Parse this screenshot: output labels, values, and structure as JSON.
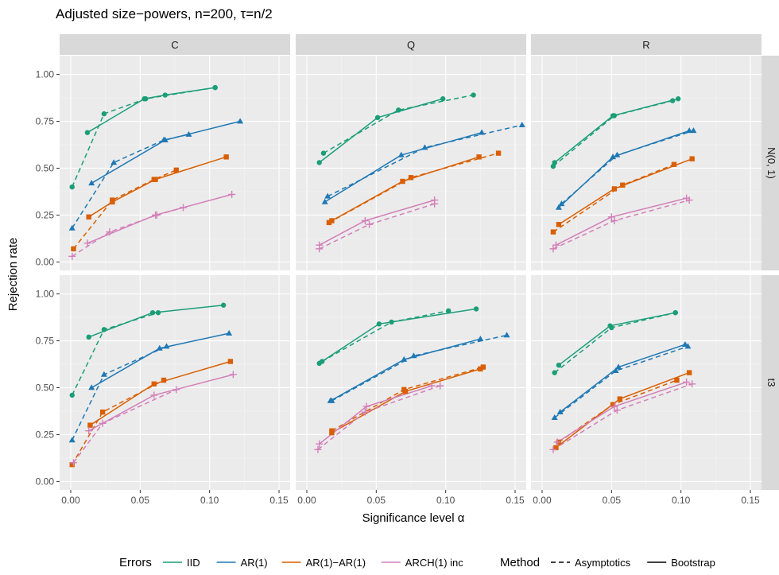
{
  "chart_data": {
    "type": "line",
    "title": "Adjusted size−powers, n=200, τ=n/2",
    "xlabel": "Significance level α",
    "ylabel": "Rejection rate",
    "xlim": [
      -0.008,
      0.158
    ],
    "ylim": [
      -0.045,
      1.1
    ],
    "x_ticks": [
      "0.00",
      "0.05",
      "0.10",
      "0.15"
    ],
    "y_ticks": [
      "0.00",
      "0.25",
      "0.50",
      "0.75",
      "1.00"
    ],
    "col_facets": [
      "C",
      "Q",
      "R"
    ],
    "row_facets": [
      "N(0, 1)",
      "t3"
    ],
    "grid": true,
    "legend_position": "bottom",
    "legend_errors": {
      "title": "Errors",
      "items": [
        {
          "key": "IID",
          "label": "IID",
          "color": "#1b9e77",
          "shape": "circle"
        },
        {
          "key": "AR1",
          "label": "AR(1)",
          "color": "#1f78b4",
          "shape": "triangle"
        },
        {
          "key": "AR1AR1",
          "label": "AR(1)−AR(1)",
          "color": "#d95f02",
          "shape": "square"
        },
        {
          "key": "ARCH",
          "label": "ARCH(1) inc",
          "color": "#d37fb8",
          "shape": "plus"
        }
      ]
    },
    "legend_method": {
      "title": "Method",
      "items": [
        {
          "key": "asym",
          "label": "Asymptotics",
          "dash": "dashed"
        },
        {
          "key": "boot",
          "label": "Bootstrap",
          "dash": "solid"
        }
      ]
    },
    "panels": [
      {
        "row": 0,
        "col": 0,
        "series": [
          {
            "errors": "IID",
            "method": "asym",
            "points": [
              [
                0.001,
                0.4
              ],
              [
                0.024,
                0.79
              ],
              [
                0.054,
                0.87
              ],
              [
                0.104,
                0.93
              ]
            ]
          },
          {
            "errors": "IID",
            "method": "boot",
            "points": [
              [
                0.012,
                0.69
              ],
              [
                0.053,
                0.87
              ],
              [
                0.068,
                0.89
              ],
              [
                0.104,
                0.93
              ]
            ]
          },
          {
            "errors": "AR1",
            "method": "asym",
            "points": [
              [
                0.001,
                0.18
              ],
              [
                0.031,
                0.53
              ],
              [
                0.067,
                0.65
              ],
              [
                0.085,
                0.68
              ]
            ]
          },
          {
            "errors": "AR1",
            "method": "boot",
            "points": [
              [
                0.015,
                0.42
              ],
              [
                0.068,
                0.65
              ],
              [
                0.122,
                0.75
              ]
            ]
          },
          {
            "errors": "AR1AR1",
            "method": "asym",
            "points": [
              [
                0.002,
                0.07
              ],
              [
                0.03,
                0.33
              ],
              [
                0.06,
                0.44
              ],
              [
                0.076,
                0.49
              ]
            ]
          },
          {
            "errors": "AR1AR1",
            "method": "boot",
            "points": [
              [
                0.013,
                0.24
              ],
              [
                0.03,
                0.32
              ],
              [
                0.061,
                0.44
              ],
              [
                0.112,
                0.56
              ]
            ]
          },
          {
            "errors": "ARCH",
            "method": "asym",
            "points": [
              [
                0.001,
                0.03
              ],
              [
                0.028,
                0.16
              ],
              [
                0.062,
                0.25
              ],
              [
                0.081,
                0.29
              ]
            ]
          },
          {
            "errors": "ARCH",
            "method": "boot",
            "points": [
              [
                0.012,
                0.1
              ],
              [
                0.061,
                0.25
              ],
              [
                0.116,
                0.36
              ]
            ]
          }
        ]
      },
      {
        "row": 0,
        "col": 1,
        "series": [
          {
            "errors": "IID",
            "method": "asym",
            "points": [
              [
                0.012,
                0.58
              ],
              [
                0.066,
                0.81
              ],
              [
                0.12,
                0.89
              ]
            ]
          },
          {
            "errors": "IID",
            "method": "boot",
            "points": [
              [
                0.009,
                0.53
              ],
              [
                0.051,
                0.77
              ],
              [
                0.098,
                0.87
              ]
            ]
          },
          {
            "errors": "AR1",
            "method": "asym",
            "points": [
              [
                0.015,
                0.35
              ],
              [
                0.085,
                0.61
              ],
              [
                0.155,
                0.73
              ]
            ]
          },
          {
            "errors": "AR1",
            "method": "boot",
            "points": [
              [
                0.013,
                0.32
              ],
              [
                0.068,
                0.57
              ],
              [
                0.126,
                0.69
              ]
            ]
          },
          {
            "errors": "AR1AR1",
            "method": "asym",
            "points": [
              [
                0.016,
                0.21
              ],
              [
                0.075,
                0.45
              ],
              [
                0.138,
                0.58
              ]
            ]
          },
          {
            "errors": "AR1AR1",
            "method": "boot",
            "points": [
              [
                0.018,
                0.22
              ],
              [
                0.069,
                0.43
              ],
              [
                0.124,
                0.56
              ]
            ]
          },
          {
            "errors": "ARCH",
            "method": "asym",
            "points": [
              [
                0.009,
                0.07
              ],
              [
                0.045,
                0.2
              ],
              [
                0.092,
                0.31
              ]
            ]
          },
          {
            "errors": "ARCH",
            "method": "boot",
            "points": [
              [
                0.009,
                0.09
              ],
              [
                0.042,
                0.22
              ],
              [
                0.092,
                0.33
              ]
            ]
          }
        ]
      },
      {
        "row": 0,
        "col": 2,
        "series": [
          {
            "errors": "IID",
            "method": "asym",
            "points": [
              [
                0.008,
                0.51
              ],
              [
                0.052,
                0.78
              ],
              [
                0.094,
                0.86
              ]
            ]
          },
          {
            "errors": "IID",
            "method": "boot",
            "points": [
              [
                0.009,
                0.53
              ],
              [
                0.051,
                0.78
              ],
              [
                0.098,
                0.87
              ]
            ]
          },
          {
            "errors": "AR1",
            "method": "asym",
            "points": [
              [
                0.014,
                0.31
              ],
              [
                0.054,
                0.57
              ],
              [
                0.109,
                0.7
              ]
            ]
          },
          {
            "errors": "AR1",
            "method": "boot",
            "points": [
              [
                0.012,
                0.29
              ],
              [
                0.051,
                0.56
              ],
              [
                0.106,
                0.7
              ]
            ]
          },
          {
            "errors": "AR1AR1",
            "method": "asym",
            "points": [
              [
                0.008,
                0.16
              ],
              [
                0.058,
                0.41
              ],
              [
                0.095,
                0.52
              ]
            ]
          },
          {
            "errors": "AR1AR1",
            "method": "boot",
            "points": [
              [
                0.012,
                0.2
              ],
              [
                0.052,
                0.39
              ],
              [
                0.108,
                0.55
              ]
            ]
          },
          {
            "errors": "AR1",
            "method": "asym_extra",
            "points": []
          },
          {
            "errors": "ARCH",
            "method": "asym",
            "points": [
              [
                0.008,
                0.07
              ],
              [
                0.052,
                0.22
              ],
              [
                0.106,
                0.33
              ]
            ]
          },
          {
            "errors": "ARCH",
            "method": "boot",
            "points": [
              [
                0.01,
                0.09
              ],
              [
                0.05,
                0.24
              ],
              [
                0.104,
                0.34
              ]
            ]
          }
        ]
      },
      {
        "row": 1,
        "col": 0,
        "series": [
          {
            "errors": "IID",
            "method": "asym",
            "points": [
              [
                0.001,
                0.46
              ],
              [
                0.024,
                0.81
              ],
              [
                0.063,
                0.9
              ]
            ]
          },
          {
            "errors": "IID",
            "method": "boot",
            "points": [
              [
                0.013,
                0.77
              ],
              [
                0.059,
                0.9
              ],
              [
                0.11,
                0.94
              ]
            ]
          },
          {
            "errors": "AR1",
            "method": "asym",
            "points": [
              [
                0.001,
                0.22
              ],
              [
                0.024,
                0.57
              ],
              [
                0.069,
                0.72
              ]
            ]
          },
          {
            "errors": "AR1",
            "method": "boot",
            "points": [
              [
                0.015,
                0.5
              ],
              [
                0.064,
                0.71
              ],
              [
                0.114,
                0.79
              ]
            ]
          },
          {
            "errors": "AR1AR1",
            "method": "asym",
            "points": [
              [
                0.001,
                0.09
              ],
              [
                0.023,
                0.37
              ],
              [
                0.067,
                0.54
              ]
            ]
          },
          {
            "errors": "AR1AR1",
            "method": "boot",
            "points": [
              [
                0.014,
                0.3
              ],
              [
                0.06,
                0.52
              ],
              [
                0.115,
                0.64
              ]
            ]
          },
          {
            "errors": "ARCH",
            "method": "asym",
            "points": [
              [
                0.002,
                0.1
              ],
              [
                0.023,
                0.31
              ],
              [
                0.076,
                0.49
              ]
            ]
          },
          {
            "errors": "ARCH",
            "method": "boot",
            "points": [
              [
                0.013,
                0.27
              ],
              [
                0.06,
                0.46
              ],
              [
                0.117,
                0.57
              ]
            ]
          }
        ]
      },
      {
        "row": 1,
        "col": 1,
        "series": [
          {
            "errors": "IID",
            "method": "asym",
            "points": [
              [
                0.011,
                0.64
              ],
              [
                0.061,
                0.85
              ],
              [
                0.102,
                0.91
              ]
            ]
          },
          {
            "errors": "IID",
            "method": "boot",
            "points": [
              [
                0.009,
                0.63
              ],
              [
                0.052,
                0.84
              ],
              [
                0.122,
                0.92
              ]
            ]
          },
          {
            "errors": "AR1",
            "method": "asym",
            "points": [
              [
                0.018,
                0.43
              ],
              [
                0.077,
                0.67
              ],
              [
                0.144,
                0.78
              ]
            ]
          },
          {
            "errors": "AR1",
            "method": "boot",
            "points": [
              [
                0.017,
                0.43
              ],
              [
                0.07,
                0.65
              ],
              [
                0.125,
                0.76
              ]
            ]
          },
          {
            "errors": "AR1AR1",
            "method": "asym",
            "points": [
              [
                0.018,
                0.27
              ],
              [
                0.07,
                0.49
              ],
              [
                0.127,
                0.61
              ]
            ]
          },
          {
            "errors": "AR1AR1",
            "method": "boot",
            "points": [
              [
                0.018,
                0.26
              ],
              [
                0.071,
                0.48
              ],
              [
                0.125,
                0.6
              ]
            ]
          },
          {
            "errors": "ARCH",
            "method": "asym",
            "points": [
              [
                0.008,
                0.17
              ],
              [
                0.042,
                0.37
              ],
              [
                0.096,
                0.51
              ]
            ]
          },
          {
            "errors": "ARCH",
            "method": "boot",
            "points": [
              [
                0.009,
                0.2
              ],
              [
                0.043,
                0.4
              ],
              [
                0.09,
                0.51
              ]
            ]
          }
        ]
      },
      {
        "row": 1,
        "col": 2,
        "series": [
          {
            "errors": "IID",
            "method": "asym",
            "points": [
              [
                0.009,
                0.58
              ],
              [
                0.05,
                0.82
              ],
              [
                0.096,
                0.9
              ]
            ]
          },
          {
            "errors": "IID",
            "method": "boot",
            "points": [
              [
                0.012,
                0.62
              ],
              [
                0.049,
                0.83
              ],
              [
                0.096,
                0.9
              ]
            ]
          },
          {
            "errors": "AR1",
            "method": "asym",
            "points": [
              [
                0.009,
                0.34
              ],
              [
                0.053,
                0.59
              ],
              [
                0.105,
                0.72
              ]
            ]
          },
          {
            "errors": "AR1",
            "method": "boot",
            "points": [
              [
                0.013,
                0.37
              ],
              [
                0.055,
                0.61
              ],
              [
                0.103,
                0.73
              ]
            ]
          },
          {
            "errors": "AR1AR1",
            "method": "asym",
            "points": [
              [
                0.012,
                0.21
              ],
              [
                0.051,
                0.41
              ],
              [
                0.097,
                0.54
              ]
            ]
          },
          {
            "errors": "AR1AR1",
            "method": "boot",
            "points": [
              [
                0.01,
                0.18
              ],
              [
                0.056,
                0.44
              ],
              [
                0.106,
                0.58
              ]
            ]
          },
          {
            "errors": "ARCH",
            "method": "asym",
            "points": [
              [
                0.008,
                0.17
              ],
              [
                0.054,
                0.38
              ],
              [
                0.108,
                0.52
              ]
            ]
          },
          {
            "errors": "ARCH",
            "method": "boot",
            "points": [
              [
                0.011,
                0.21
              ],
              [
                0.052,
                0.4
              ],
              [
                0.104,
                0.53
              ]
            ]
          }
        ]
      }
    ]
  }
}
